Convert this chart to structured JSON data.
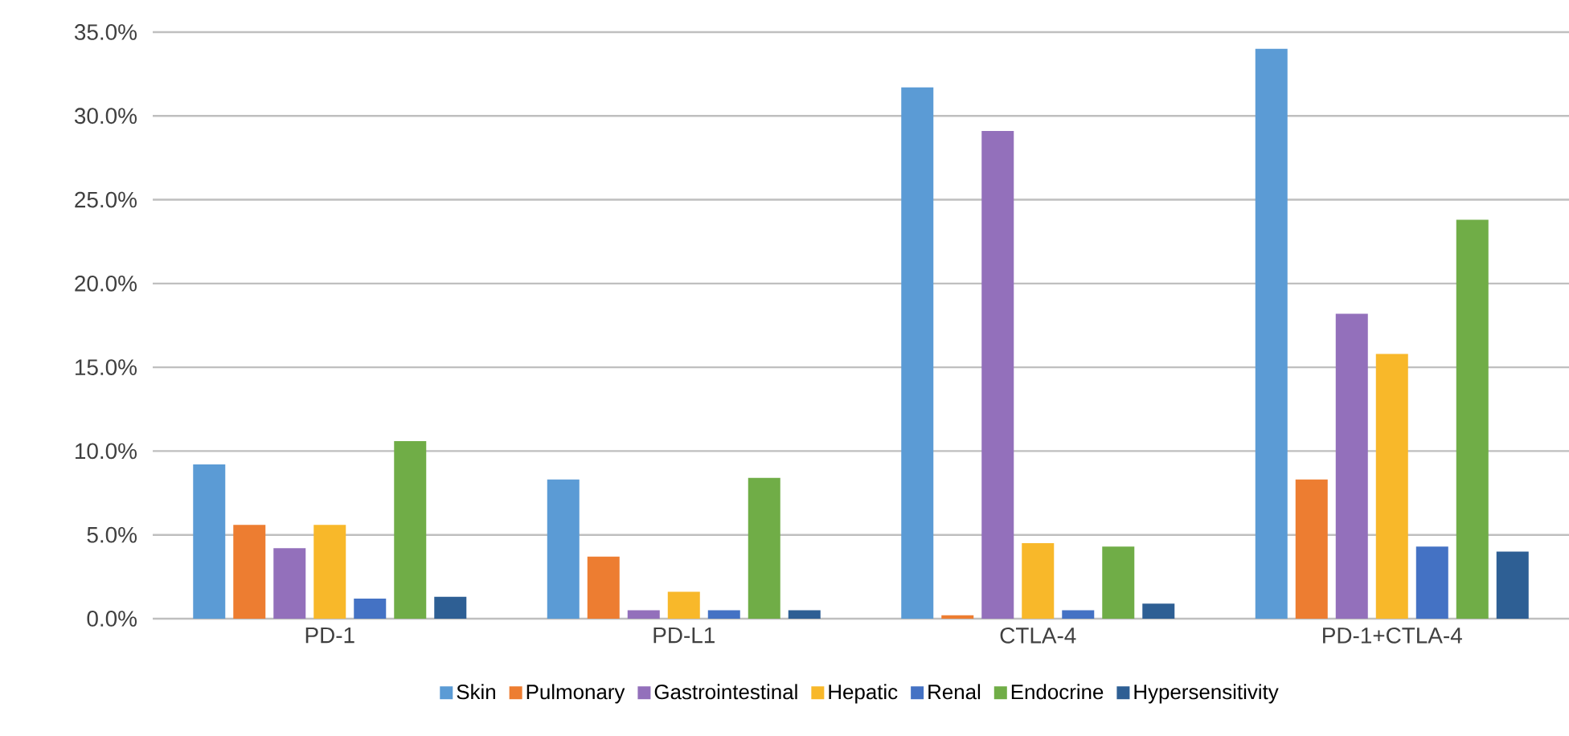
{
  "chart_data": {
    "type": "bar",
    "categories": [
      "PD-1",
      "PD-L1",
      "CTLA-4",
      "PD-1+CTLA-4"
    ],
    "series": [
      {
        "name": "Skin",
        "color": "#5b9bd5",
        "values": [
          9.2,
          8.3,
          31.7,
          34.0
        ]
      },
      {
        "name": "Pulmonary",
        "color": "#ed7d31",
        "values": [
          5.6,
          3.7,
          0.2,
          8.3
        ]
      },
      {
        "name": "Gastrointestinal",
        "color": "#9370bb",
        "values": [
          4.2,
          0.5,
          29.1,
          18.2
        ]
      },
      {
        "name": "Hepatic",
        "color": "#f8b82a",
        "values": [
          5.6,
          1.6,
          4.5,
          15.8
        ]
      },
      {
        "name": "Renal",
        "color": "#4472c4",
        "values": [
          1.2,
          0.5,
          0.5,
          4.3
        ]
      },
      {
        "name": "Endocrine",
        "color": "#70ad47",
        "values": [
          10.6,
          8.4,
          4.3,
          23.8
        ]
      },
      {
        "name": "Hypersensitivity",
        "color": "#2e5f94",
        "values": [
          1.3,
          0.5,
          0.9,
          4.0
        ]
      }
    ],
    "ylim": [
      0,
      35
    ],
    "yticks": [
      {
        "value": 0,
        "label": "0.0%"
      },
      {
        "value": 5,
        "label": "5.0%"
      },
      {
        "value": 10,
        "label": "10.0%"
      },
      {
        "value": 15,
        "label": "15.0%"
      },
      {
        "value": 20,
        "label": "20.0%"
      },
      {
        "value": 25,
        "label": "25.0%"
      },
      {
        "value": 30,
        "label": "30.0%"
      },
      {
        "value": 35,
        "label": "35.0%"
      }
    ],
    "grid": "y",
    "legend": "bottom"
  }
}
